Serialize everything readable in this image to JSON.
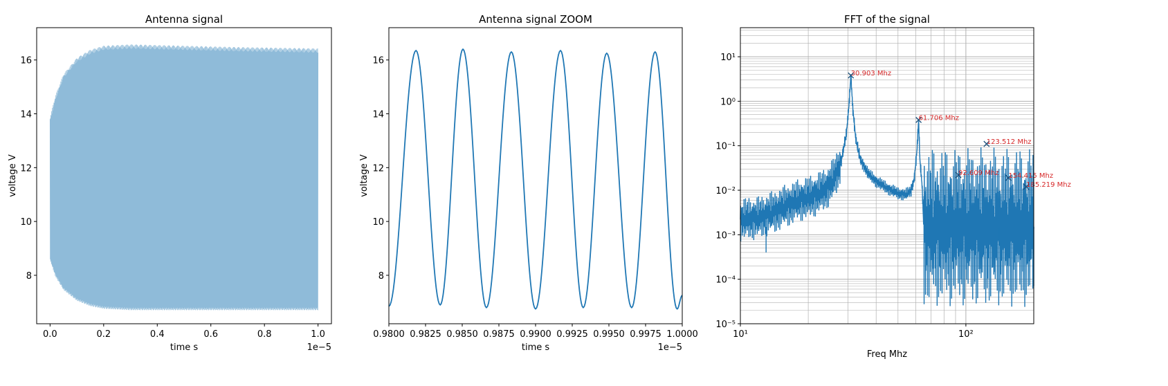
{
  "colors": {
    "line": "#1f77b4",
    "line_light": "#8fbbd9",
    "annotation": "#d62728",
    "grid": "#b0b0b0",
    "frame": "#000000"
  },
  "chart_data": [
    {
      "type": "line",
      "title": "Antenna signal",
      "xlabel": "time s",
      "ylabel": "voltage V",
      "xlim": [
        -0.05,
        1.05
      ],
      "ylim": [
        6.2,
        17.2
      ],
      "x_offset_label": "1e−5",
      "xticks": [
        0.0,
        0.2,
        0.4,
        0.6,
        0.8,
        1.0
      ],
      "xtick_labels": [
        "0.0",
        "0.2",
        "0.4",
        "0.6",
        "0.8",
        "1.0"
      ],
      "yticks": [
        8,
        10,
        12,
        14,
        16
      ],
      "ytick_labels": [
        "8",
        "10",
        "12",
        "14",
        "16"
      ],
      "series": [
        {
          "style": "dense-oscillation",
          "x_range": [
            0.0,
            1.0
          ],
          "envelope_upper": [
            [
              0.0,
              13.8
            ],
            [
              0.02,
              14.6
            ],
            [
              0.05,
              15.4
            ],
            [
              0.1,
              16.0
            ],
            [
              0.15,
              16.3
            ],
            [
              0.2,
              16.45
            ],
            [
              0.3,
              16.5
            ],
            [
              0.5,
              16.45
            ],
            [
              0.7,
              16.4
            ],
            [
              1.0,
              16.35
            ]
          ],
          "envelope_lower": [
            [
              0.0,
              8.6
            ],
            [
              0.02,
              8.0
            ],
            [
              0.05,
              7.5
            ],
            [
              0.1,
              7.1
            ],
            [
              0.15,
              6.9
            ],
            [
              0.2,
              6.8
            ],
            [
              0.3,
              6.75
            ],
            [
              0.5,
              6.75
            ],
            [
              0.7,
              6.75
            ],
            [
              1.0,
              6.75
            ]
          ]
        }
      ],
      "grid": false
    },
    {
      "type": "line",
      "title": "Antenna signal ZOOM",
      "xlabel": "time s",
      "ylabel": "voltage V",
      "xlim": [
        0.98,
        1.0
      ],
      "ylim": [
        6.2,
        17.2
      ],
      "x_offset_label": "1e−5",
      "xticks": [
        0.98,
        0.9825,
        0.985,
        0.9875,
        0.99,
        0.9925,
        0.995,
        0.9975,
        1.0
      ],
      "xtick_labels": [
        "0.9800",
        "0.9825",
        "0.9850",
        "0.9875",
        "0.9900",
        "0.9925",
        "0.9950",
        "0.9975",
        "1.0000"
      ],
      "yticks": [
        8,
        10,
        12,
        14,
        16
      ],
      "ytick_labels": [
        "8",
        "10",
        "12",
        "14",
        "16"
      ],
      "series": [
        {
          "style": "periodic",
          "peaks": [
            [
              0.98185,
              16.35
            ],
            [
              0.98505,
              16.4
            ],
            [
              0.98835,
              16.3
            ],
            [
              0.9917,
              16.35
            ],
            [
              0.99485,
              16.25
            ],
            [
              0.99815,
              16.3
            ]
          ],
          "troughs": [
            [
              0.98,
              6.85
            ],
            [
              0.9835,
              6.9
            ],
            [
              0.98665,
              6.8
            ],
            [
              0.99,
              6.75
            ],
            [
              0.99325,
              6.8
            ],
            [
              0.99655,
              6.8
            ],
            [
              0.99965,
              6.75
            ]
          ],
          "end_point": [
            1.0,
            7.25
          ]
        }
      ],
      "grid": false
    },
    {
      "type": "line",
      "title": "FFT of the signal",
      "xlabel": "Freq Mhz",
      "ylabel": "",
      "xscale": "log",
      "yscale": "log",
      "xlim": [
        10,
        200
      ],
      "ylim": [
        1e-05,
        45
      ],
      "xticks": [
        10,
        100
      ],
      "xtick_labels": [
        "10¹",
        "10²"
      ],
      "yticks": [
        1e-05,
        0.0001,
        0.001,
        0.01,
        0.1,
        1,
        10
      ],
      "ytick_labels": [
        "10⁻⁵",
        "10⁻⁴",
        "10⁻³",
        "10⁻²",
        "10⁻¹",
        "10⁰",
        "10¹"
      ],
      "grid": true,
      "peaks": [
        {
          "freq": 30.903,
          "value": 3.8,
          "label": "30.903 Mhz"
        },
        {
          "freq": 61.706,
          "value": 0.38,
          "label": "61.706 Mhz"
        },
        {
          "freq": 92.609,
          "value": 0.022,
          "label": "92.609 Mhz"
        },
        {
          "freq": 123.512,
          "value": 0.11,
          "label": "123.512 Mhz"
        },
        {
          "freq": 154.415,
          "value": 0.019,
          "label": "154.415 Mhz"
        },
        {
          "freq": 185.219,
          "value": 0.012,
          "label": "185.219 Mhz"
        }
      ],
      "spectrum_points": [
        [
          10,
          0.0022
        ],
        [
          12,
          0.0024
        ],
        [
          14,
          0.0032
        ],
        [
          16,
          0.0045
        ],
        [
          18,
          0.0058
        ],
        [
          20,
          0.0068
        ],
        [
          22,
          0.0082
        ],
        [
          24,
          0.011
        ],
        [
          26,
          0.018
        ],
        [
          28,
          0.045
        ],
        [
          29.5,
          0.18
        ],
        [
          30.3,
          0.8
        ],
        [
          30.903,
          3.8
        ],
        [
          31.5,
          0.7
        ],
        [
          32.5,
          0.14
        ],
        [
          34,
          0.05
        ],
        [
          37,
          0.023
        ],
        [
          40,
          0.016
        ],
        [
          45,
          0.011
        ],
        [
          50,
          0.0085
        ],
        [
          54,
          0.008
        ],
        [
          57,
          0.0095
        ],
        [
          59,
          0.018
        ],
        [
          60.7,
          0.08
        ],
        [
          61.706,
          0.38
        ],
        [
          62.5,
          0.05
        ],
        [
          64,
          0.012
        ],
        [
          65,
          0.0015
        ],
        [
          200,
          0.0015
        ]
      ],
      "dips": [
        [
          13,
          0.0004
        ],
        [
          140,
          5e-05
        ],
        [
          200,
          7e-05
        ]
      ]
    }
  ]
}
